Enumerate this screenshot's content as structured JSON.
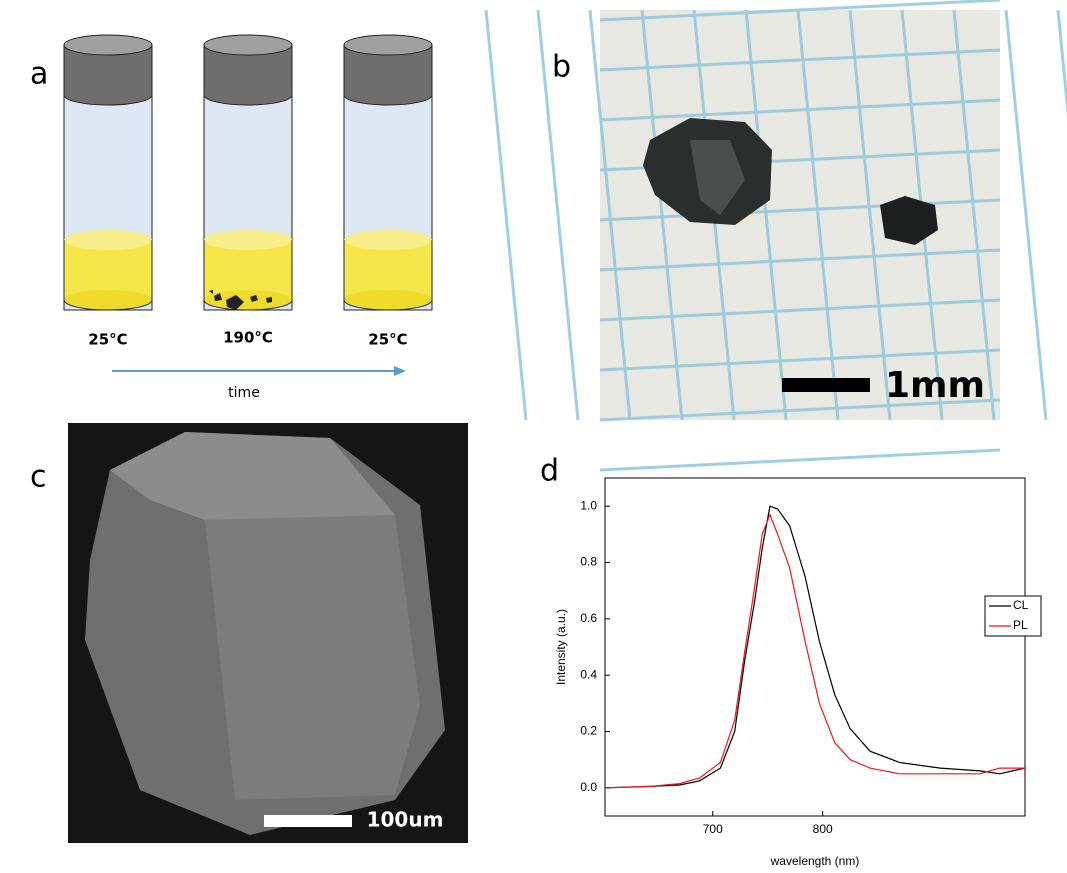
{
  "panels": {
    "a": {
      "label": "a",
      "temperatures": [
        "25°C",
        "190°C",
        "25°C"
      ],
      "arrow_label": "time"
    },
    "b": {
      "label": "b",
      "scale_bar": "1mm"
    },
    "c": {
      "label": "c",
      "scale_bar": "100um"
    },
    "d": {
      "label": "d"
    }
  },
  "chart_data": {
    "type": "line",
    "x_label": "wavelength (nm)",
    "y_label": "Intensity (a.u.)",
    "x": [
      602,
      643,
      670,
      688,
      707,
      720,
      729,
      738,
      745,
      752,
      759,
      770,
      784,
      797,
      811,
      825,
      843,
      870,
      907,
      943,
      961,
      984
    ],
    "series": [
      {
        "name": "CL",
        "color": "#000000",
        "values": [
          0,
          0.005,
          0.01,
          0.025,
          0.07,
          0.2,
          0.45,
          0.66,
          0.85,
          1.0,
          0.99,
          0.93,
          0.75,
          0.52,
          0.33,
          0.21,
          0.13,
          0.09,
          0.07,
          0.06,
          0.05,
          0.07
        ]
      },
      {
        "name": "PL",
        "color": "#e8191f",
        "values": [
          0,
          0.005,
          0.015,
          0.035,
          0.09,
          0.24,
          0.48,
          0.71,
          0.9,
          0.97,
          0.9,
          0.78,
          0.52,
          0.3,
          0.16,
          0.1,
          0.07,
          0.05,
          0.05,
          0.05,
          0.07,
          0.07
        ]
      }
    ],
    "xlim": [
      602,
      984
    ],
    "ylim": [
      -0.1,
      1.1
    ],
    "xticks": [
      700,
      800
    ],
    "yticks": [
      {
        "value": 0,
        "label": "0.0"
      },
      0.2,
      0.4,
      0.6,
      0.8,
      {
        "value": 1,
        "label": "1.0"
      }
    ],
    "legend": "right"
  }
}
